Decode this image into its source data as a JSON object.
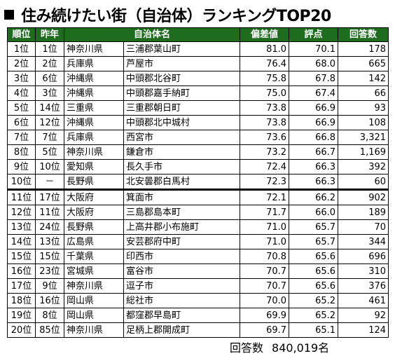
{
  "title": "住み続けたい街（自治体）ランキングTOP20",
  "headers": [
    "順位",
    "昨年",
    "自治体名",
    "偏差値",
    "評点",
    "回答数"
  ],
  "rows": [
    {
      "rank": "1位",
      "prev": "1位",
      "pref": "神奈川県",
      "city": "三浦郡葉山町",
      "score": "81.0",
      "rating": "70.1",
      "answers": "178"
    },
    {
      "rank": "2位",
      "prev": "2位",
      "pref": "兵庫県",
      "city": "芦屋市",
      "score": "76.4",
      "rating": "68.0",
      "answers": "665"
    },
    {
      "rank": "3位",
      "prev": "6位",
      "pref": "沖縄県",
      "city": "中頭郡北谷町",
      "score": "75.8",
      "rating": "67.8",
      "answers": "142"
    },
    {
      "rank": "4位",
      "prev": "3位",
      "pref": "沖縄県",
      "city": "中頭郡嘉手納町",
      "score": "75.0",
      "rating": "67.4",
      "answers": "66"
    },
    {
      "rank": "5位",
      "prev": "14位",
      "pref": "三重県",
      "city": "三重郡朝日町",
      "score": "73.8",
      "rating": "66.9",
      "answers": "93"
    },
    {
      "rank": "6位",
      "prev": "12位",
      "pref": "沖縄県",
      "city": "中頭郡北中城村",
      "score": "73.8",
      "rating": "66.9",
      "answers": "108"
    },
    {
      "rank": "7位",
      "prev": "7位",
      "pref": "兵庫県",
      "city": "西宮市",
      "score": "73.6",
      "rating": "66.8",
      "answers": "3,321"
    },
    {
      "rank": "8位",
      "prev": "5位",
      "pref": "神奈川県",
      "city": "鎌倉市",
      "score": "73.2",
      "rating": "66.7",
      "answers": "1,169"
    },
    {
      "rank": "9位",
      "prev": "10位",
      "pref": "愛知県",
      "city": "長久手市",
      "score": "72.4",
      "rating": "66.3",
      "answers": "392"
    },
    {
      "rank": "10位",
      "prev": "－",
      "pref": "長野県",
      "city": "北安曇郡白馬村",
      "score": "72.3",
      "rating": "66.3",
      "answers": "60"
    },
    {
      "rank": "11位",
      "prev": "17位",
      "pref": "大阪府",
      "city": "箕面市",
      "score": "72.1",
      "rating": "66.2",
      "answers": "902"
    },
    {
      "rank": "12位",
      "prev": "11位",
      "pref": "大阪府",
      "city": "三島郡島本町",
      "score": "71.7",
      "rating": "66.0",
      "answers": "189"
    },
    {
      "rank": "13位",
      "prev": "24位",
      "pref": "長野県",
      "city": "上高井郡小布施町",
      "score": "71.0",
      "rating": "65.7",
      "answers": "70"
    },
    {
      "rank": "14位",
      "prev": "13位",
      "pref": "広島県",
      "city": "安芸郡府中町",
      "score": "71.0",
      "rating": "65.7",
      "answers": "344"
    },
    {
      "rank": "15位",
      "prev": "15位",
      "pref": "千葉県",
      "city": "印西市",
      "score": "70.8",
      "rating": "65.6",
      "answers": "696"
    },
    {
      "rank": "16位",
      "prev": "23位",
      "pref": "宮城県",
      "city": "富谷市",
      "score": "70.7",
      "rating": "65.6",
      "answers": "310"
    },
    {
      "rank": "17位",
      "prev": "9位",
      "pref": "神奈川県",
      "city": "逗子市",
      "score": "70.7",
      "rating": "65.6",
      "answers": "376"
    },
    {
      "rank": "18位",
      "prev": "16位",
      "pref": "岡山県",
      "city": "総社市",
      "score": "70.0",
      "rating": "65.2",
      "answers": "461"
    },
    {
      "rank": "19位",
      "prev": "8位",
      "pref": "岡山県",
      "city": "都窪郡早島町",
      "score": "69.9",
      "rating": "65.2",
      "answers": "92"
    },
    {
      "rank": "20位",
      "prev": "85位",
      "pref": "神奈川県",
      "city": "足柄上郡開成町",
      "score": "69.7",
      "rating": "65.1",
      "answers": "124"
    }
  ],
  "footer": {
    "label": "回答数",
    "value": "840,019名"
  },
  "colors": {
    "header_bg": "#1e6d1e",
    "header_text": "#ffffff"
  }
}
